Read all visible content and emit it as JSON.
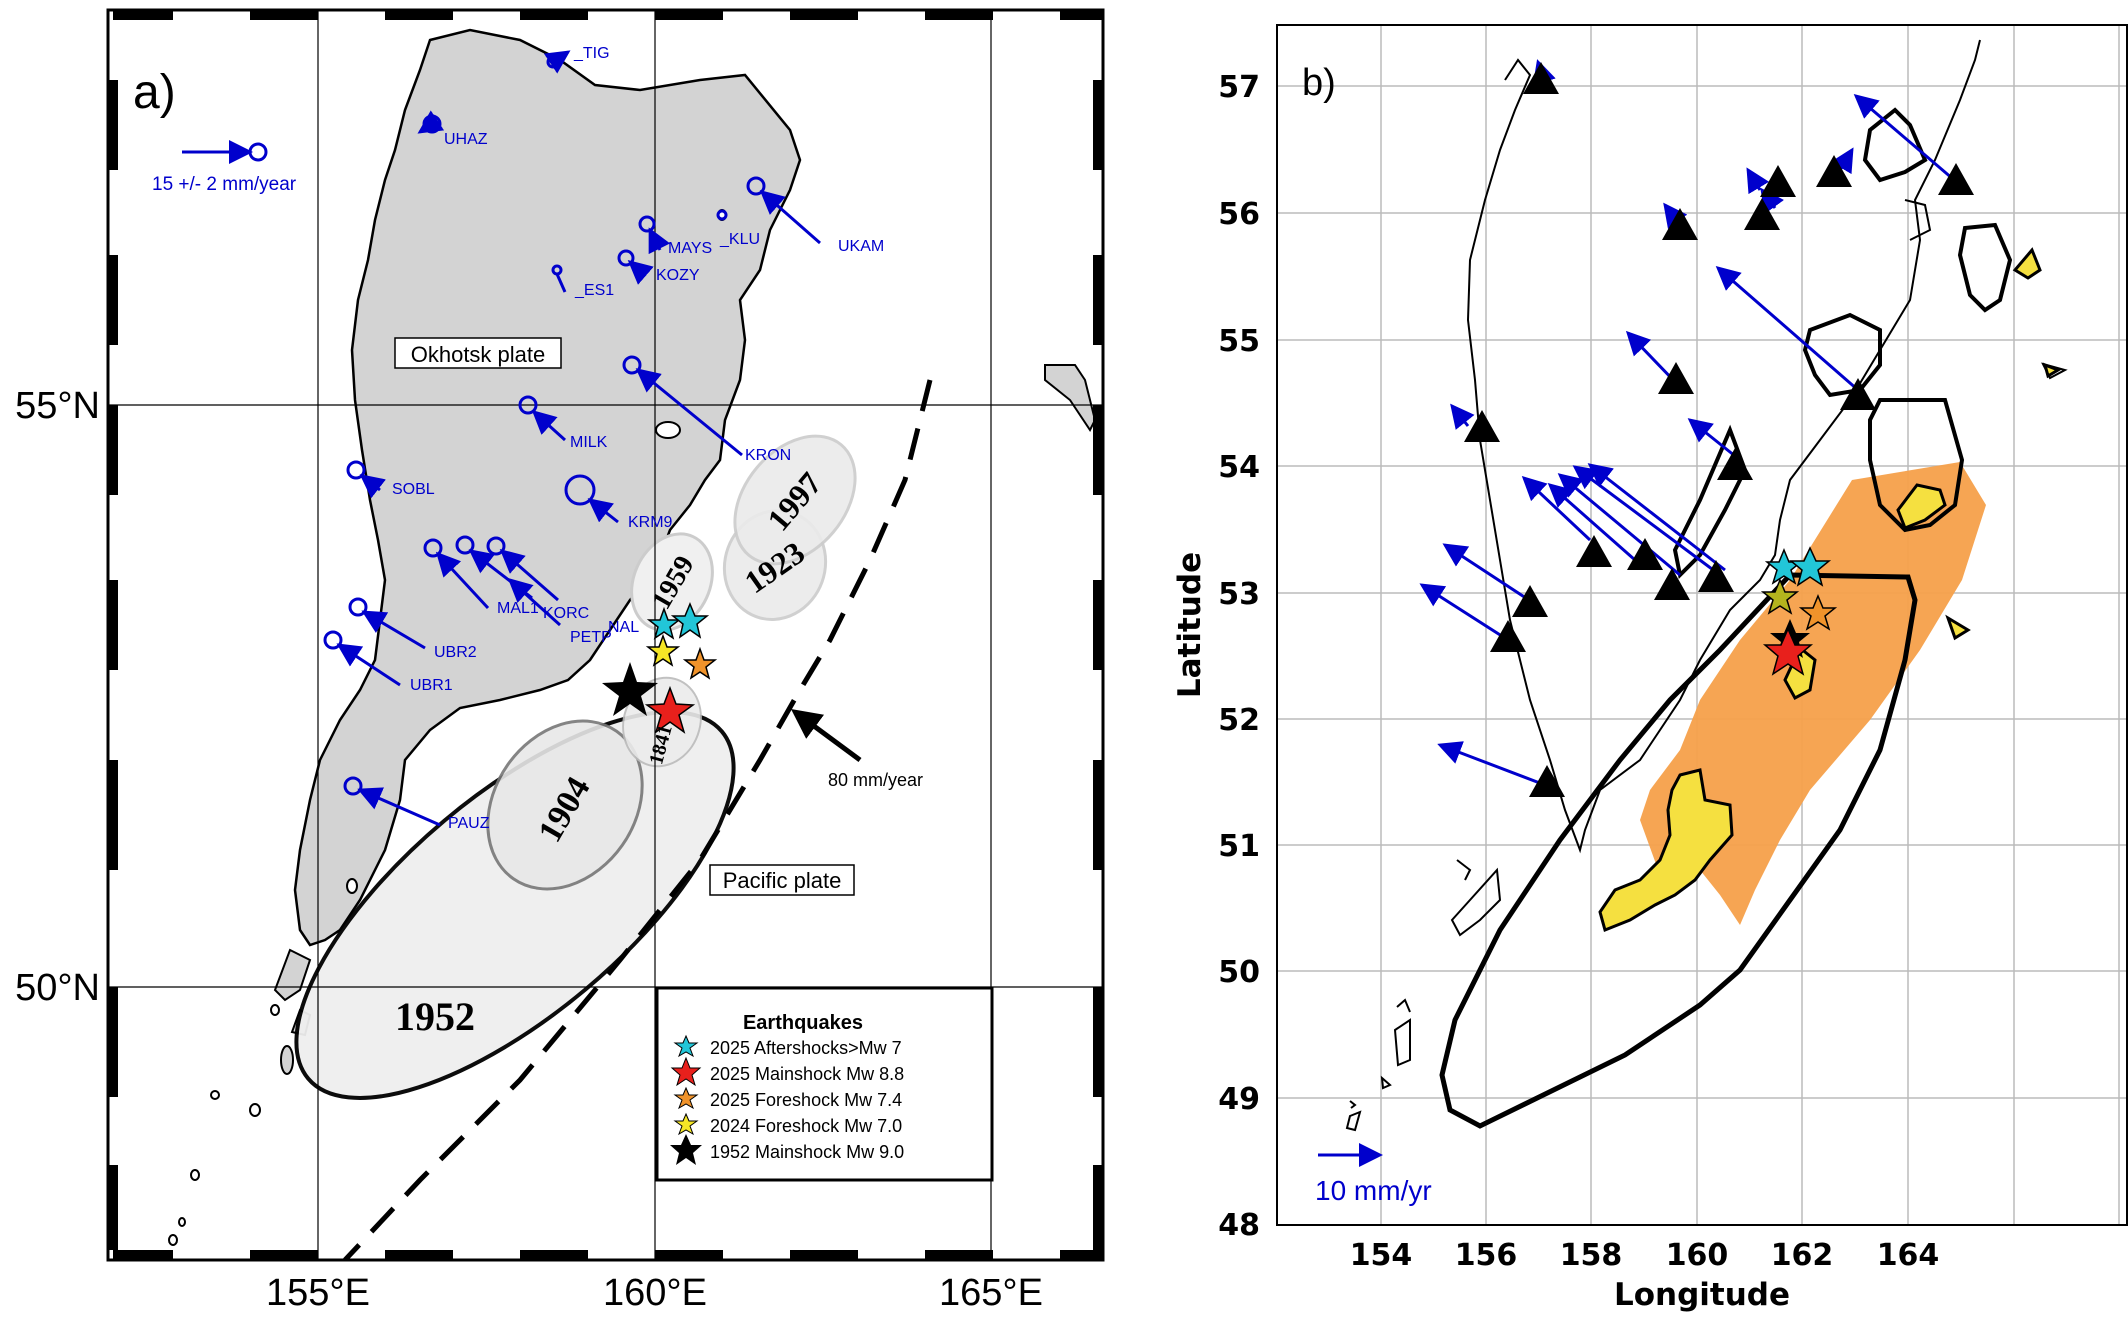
{
  "panel_a": {
    "letter": "a)",
    "lat_labels": [
      "55°N",
      "50°N"
    ],
    "lon_labels": [
      "155°E",
      "160°E",
      "165°E"
    ],
    "plates": {
      "okhotsk": "Okhotsk plate",
      "pacific": "Pacific plate"
    },
    "scale_vector": "15 +/- 2 mm/year",
    "convergence": "80 mm/year",
    "stations": [
      "_TIG",
      "UHAZ",
      "MAYS",
      "_KLU",
      "UKAM",
      "KOZY",
      "_ES1",
      "KRON",
      "MILK",
      "SOBL",
      "KRM9",
      "MAL1",
      "KORC",
      "PETP",
      "NAL",
      "UBR2",
      "UBR1",
      "PAUZ"
    ],
    "ruptures": [
      "1952",
      "1904",
      "1959",
      "1923",
      "1997",
      "1841"
    ],
    "legend": {
      "title": "Earthquakes",
      "items": [
        {
          "label": "2025 Aftershocks>Mw 7",
          "color": "#22c6d8"
        },
        {
          "label": "2025 Mainshock Mw 8.8",
          "color": "#e8201c"
        },
        {
          "label": "2025 Foreshock Mw 7.4",
          "color": "#f0932b"
        },
        {
          "label": "2024 Foreshock Mw 7.0",
          "color": "#f5e626"
        },
        {
          "label": "1952 Mainshock Mw 9.0",
          "color": "#000000"
        }
      ]
    }
  },
  "panel_b": {
    "letter": "b)",
    "xlabel": "Longitude",
    "ylabel": "Latitude",
    "x_ticks": [
      "154",
      "156",
      "158",
      "160",
      "162",
      "164"
    ],
    "y_ticks": [
      "57",
      "56",
      "55",
      "54",
      "53",
      "52",
      "51",
      "50",
      "49",
      "48"
    ],
    "scale_vector": "10 mm/yr",
    "slip_color": "#f5a04a",
    "high_slip_color": "#f5e040"
  },
  "colors": {
    "vectors": "#0000cc",
    "land": "#d3d3d3",
    "rupture_fill": "#efefef"
  }
}
